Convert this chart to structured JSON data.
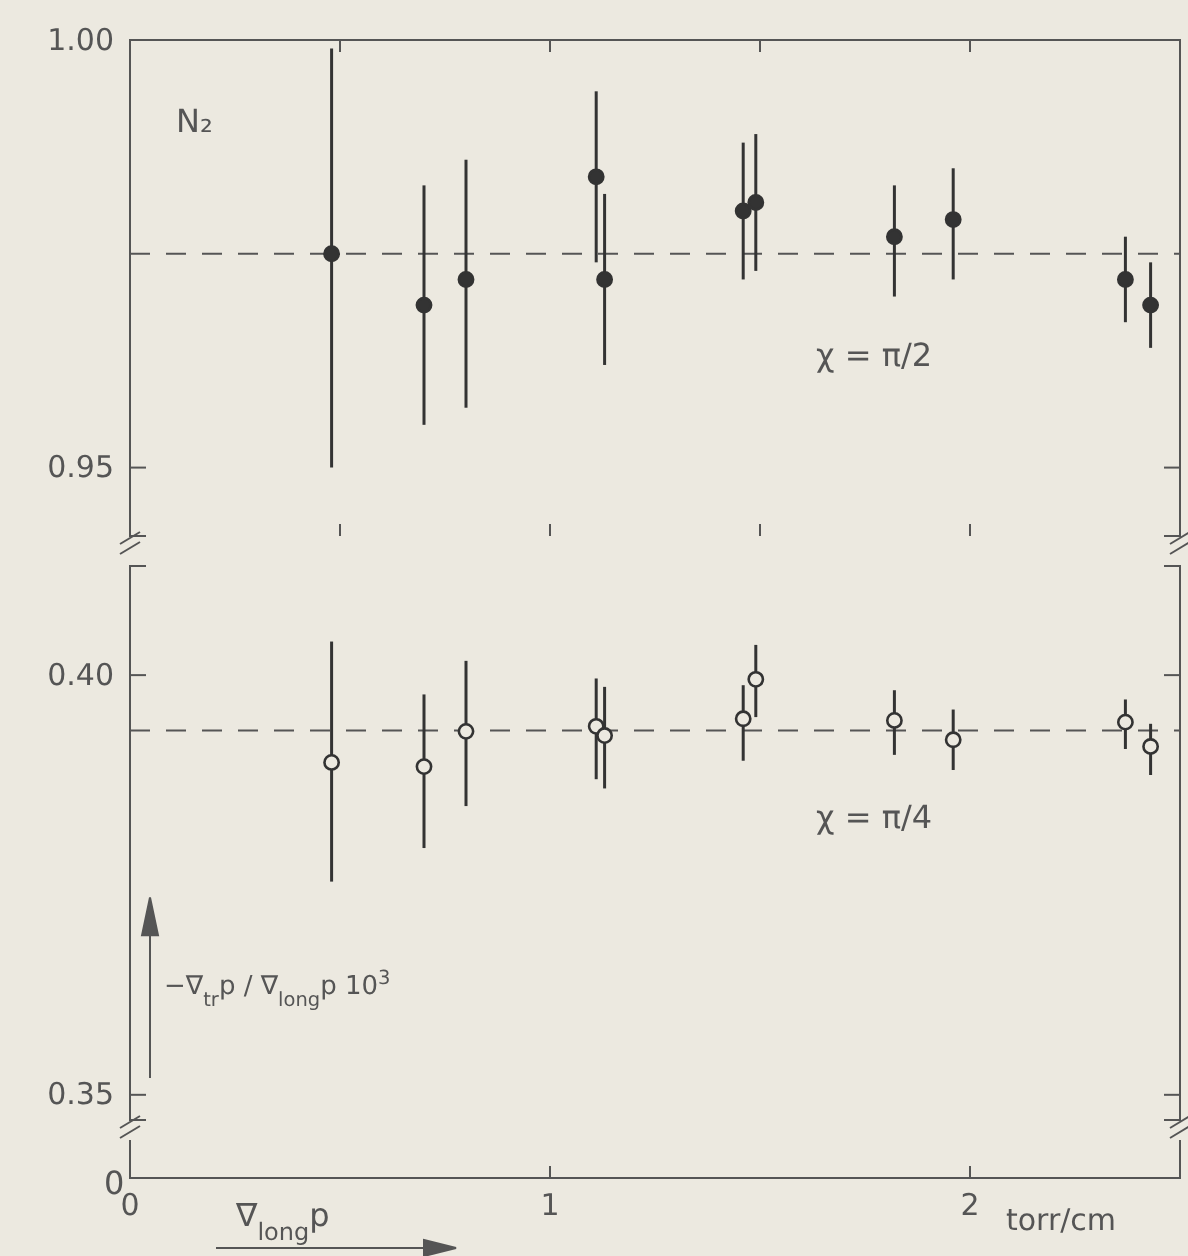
{
  "chart_data": [
    {
      "type": "scatter",
      "marker": "circle",
      "ylim": [
        0.942,
        1.0
      ],
      "yticks": [
        {
          "value": 0.95,
          "label": "0.95"
        },
        {
          "value": 1.0,
          "label": "1.00"
        }
      ],
      "xlim": [
        0,
        2.5
      ],
      "xticks": [
        0.5,
        1,
        1.5,
        2
      ],
      "tick_labels": "y",
      "x": [
        0.48,
        0.7,
        0.8,
        1.11,
        1.13,
        1.46,
        1.49,
        1.82,
        1.96,
        2.37,
        2.43
      ],
      "series": [
        {
          "color": "#333333",
          "values": [
            0.975,
            0.969,
            0.972,
            0.984,
            0.972,
            0.98,
            0.981,
            0.977,
            0.979,
            0.972,
            0.969
          ],
          "errors": [
            [
              0.95,
              0.999
            ],
            [
              0.955,
              0.983
            ],
            [
              0.957,
              0.986
            ],
            [
              0.974,
              0.994
            ],
            [
              0.962,
              0.982
            ],
            [
              0.972,
              0.988
            ],
            [
              0.973,
              0.989
            ],
            [
              0.97,
              0.983
            ],
            [
              0.972,
              0.985
            ],
            [
              0.967,
              0.977
            ],
            [
              0.964,
              0.974
            ]
          ]
        }
      ],
      "ref_lines": [
        {
          "axis": "y",
          "value": 0.975,
          "line_style": "dashed"
        }
      ],
      "annotations": [
        "N₂",
        "χ = π/2"
      ]
    },
    {
      "type": "scatter",
      "marker": "circle",
      "ylim": [
        0.347,
        0.413
      ],
      "yticks": [
        {
          "value": 0.35,
          "label": "0.35"
        },
        {
          "value": 0.4,
          "label": "0.40"
        }
      ],
      "xlim": [
        0,
        2.5
      ],
      "xticks": [
        0,
        1,
        2
      ],
      "ylabel": "−∇$_{tr}$p / ∇$_{long}$p 10$^{3}$",
      "xlabel": "torr/cm",
      "x": [
        0.48,
        0.7,
        0.8,
        1.11,
        1.13,
        1.46,
        1.49,
        1.82,
        1.96,
        2.37,
        2.43
      ],
      "series": [
        {
          "color": "#333333",
          "values": [
            0.3896,
            0.3891,
            0.3933,
            0.3939,
            0.3928,
            0.3948,
            0.3995,
            0.3946,
            0.3923,
            0.3944,
            0.3915
          ],
          "errors": [
            [
              0.3754,
              0.404
            ],
            [
              0.3794,
              0.3977
            ],
            [
              0.3844,
              0.4017
            ],
            [
              0.3876,
              0.3996
            ],
            [
              0.3865,
              0.3986
            ],
            [
              0.3898,
              0.3988
            ],
            [
              0.395,
              0.4036
            ],
            [
              0.3905,
              0.3982
            ],
            [
              0.3887,
              0.3959
            ],
            [
              0.3912,
              0.3971
            ],
            [
              0.3881,
              0.3942
            ]
          ]
        }
      ],
      "ref_lines": [
        {
          "axis": "y",
          "value": 0.3934,
          "line_style": "dashed"
        }
      ],
      "annotations": [
        "χ = π/4",
        "0",
        "∇$_{long}$p"
      ]
    }
  ]
}
